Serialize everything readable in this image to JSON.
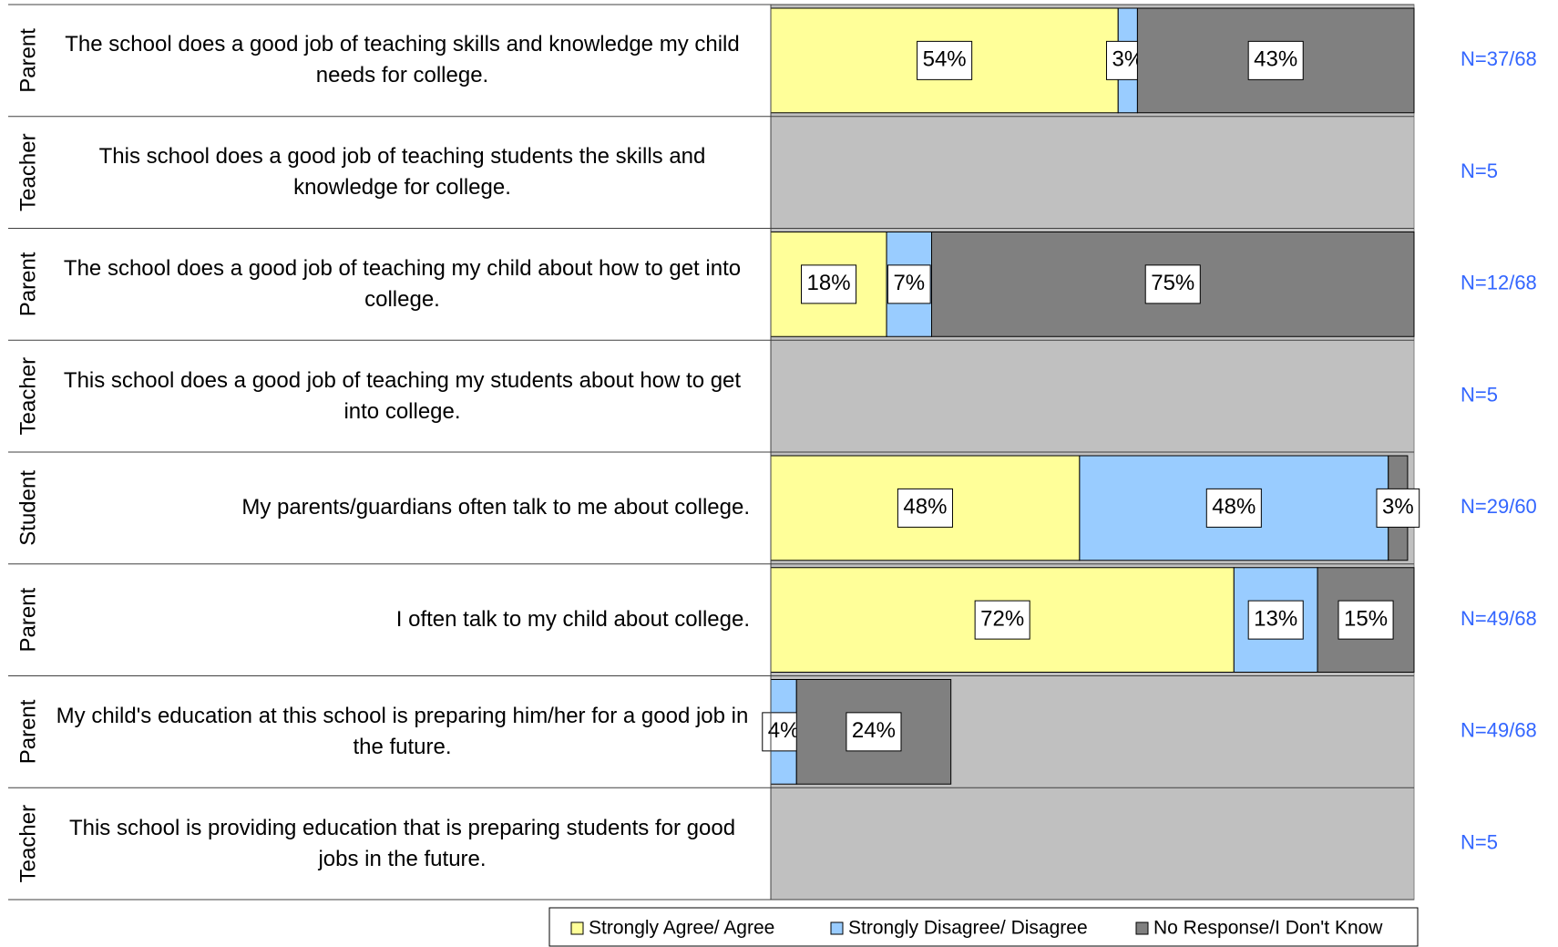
{
  "chart_data": {
    "type": "stacked-bar-horizontal",
    "groups": [
      "Parent",
      "Teacher",
      "Parent",
      "Teacher",
      "Student",
      "Parent",
      "Parent",
      "Teacher"
    ],
    "categories": [
      "The school does a good job of teaching skills and knowledge my child needs for college.",
      "This school does a good job of teaching students the skills and knowledge for college.",
      "The school does a good job of teaching my child about how to get into college.",
      "This school does a good job of teaching my students about how to get into college.",
      "My parents/guardians often talk to me about college.",
      "I often talk to my child about college.",
      "My child's education at this school is preparing him/her for a good job in the future.",
      "This school is providing education that is preparing students for good jobs in the future."
    ],
    "n_labels": [
      "N=37/68",
      "N=5",
      "N=12/68",
      "N=5",
      "N=29/60",
      "N=49/68",
      "N=49/68",
      "N=5"
    ],
    "series": [
      {
        "name": "Strongly Agree/ Agree",
        "color": "#ffff99",
        "values": [
          54,
          null,
          18,
          null,
          48,
          72,
          null,
          null
        ],
        "value_labels": [
          "54%",
          null,
          "18%",
          null,
          "48%",
          "72%",
          null,
          null
        ]
      },
      {
        "name": "Strongly Disagree/ Disagree",
        "color": "#99ccff",
        "values": [
          3,
          null,
          7,
          null,
          48,
          13,
          4,
          null
        ],
        "value_labels": [
          "3%",
          null,
          "7%",
          null,
          "48%",
          "13%",
          "4%",
          null
        ]
      },
      {
        "name": "No Response/I Don't Know",
        "color": "#808080",
        "values": [
          43,
          null,
          75,
          null,
          3,
          15,
          24,
          null
        ],
        "value_labels": [
          "43%",
          null,
          "75%",
          null,
          "3%",
          "15%",
          "24%",
          null
        ]
      }
    ],
    "xlim": [
      0,
      100
    ],
    "background_color": "#c0c0c0",
    "n_label_color": "#3366ff"
  }
}
